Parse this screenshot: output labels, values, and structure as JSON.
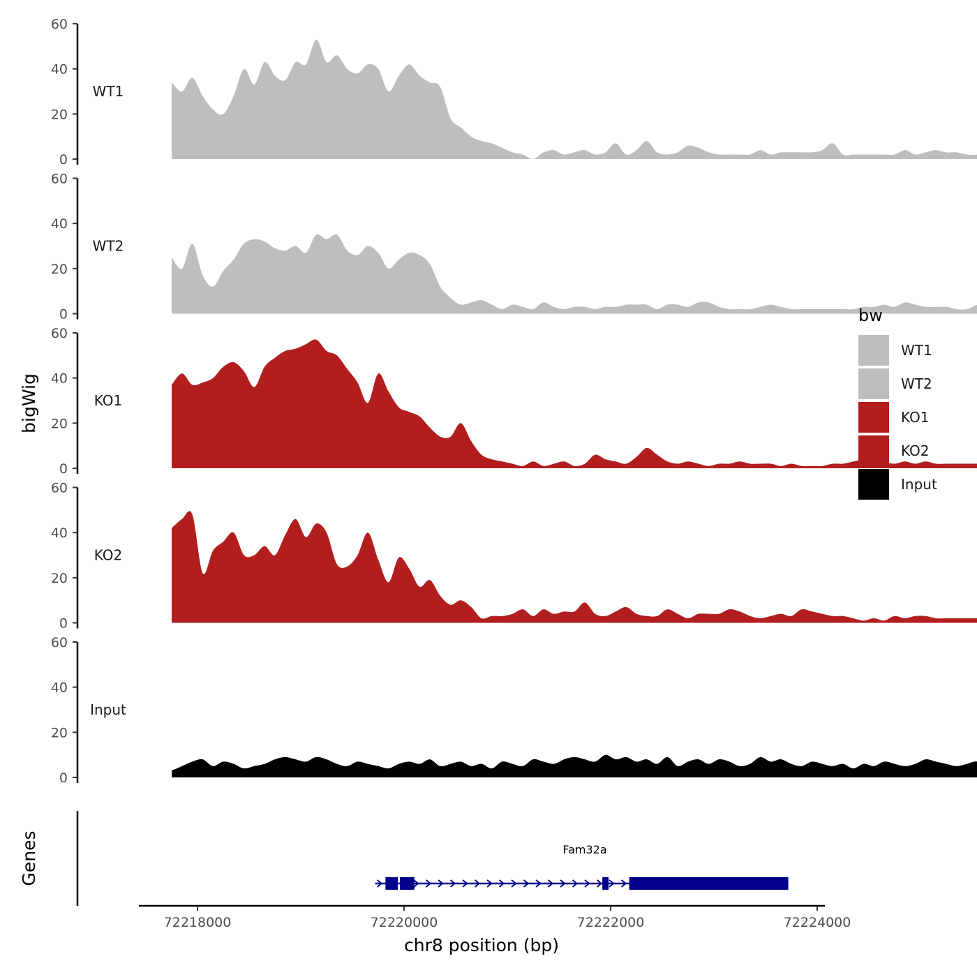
{
  "chart_data": {
    "type": "area",
    "title": "",
    "xlabel": "chr8 position (bp)",
    "ylabel": "bigWig",
    "genes_label": "Genes",
    "xlim": [
      72217400,
      72224000
    ],
    "data_range": [
      72217750,
      72223720
    ],
    "x_ticks": [
      72218000,
      72220000,
      72222000,
      72224000
    ],
    "x_tick_labels": [
      "72218000",
      "72220000",
      "72222000",
      "72224000"
    ],
    "ylim": [
      0,
      60
    ],
    "y_ticks": [
      0,
      20,
      40,
      60
    ],
    "y_tick_labels": [
      "0",
      "20",
      "40",
      "60"
    ],
    "legend": {
      "title": "bw",
      "position": "right",
      "entries": [
        {
          "label": "WT1",
          "color": "#bebebe"
        },
        {
          "label": "WT2",
          "color": "#bebebe"
        },
        {
          "label": "KO1",
          "color": "#b21e1e"
        },
        {
          "label": "KO2",
          "color": "#b21e1e"
        },
        {
          "label": "Input",
          "color": "#000000"
        }
      ]
    },
    "series": [
      {
        "name": "WT1",
        "color": "#bebebe",
        "x_start": 72217750,
        "x_step": 100,
        "values": [
          34,
          30,
          36,
          28,
          22,
          20,
          28,
          40,
          33,
          43,
          37,
          35,
          43,
          42,
          53,
          43,
          46,
          40,
          38,
          42,
          40,
          30,
          37,
          42,
          37,
          34,
          32,
          18,
          14,
          10,
          8,
          7,
          5,
          3,
          2,
          0,
          3,
          4,
          2,
          3,
          4,
          2,
          3,
          7,
          2,
          4,
          8,
          3,
          2,
          3,
          6,
          5,
          3,
          2,
          2,
          2,
          2,
          4,
          2,
          3,
          3,
          3,
          3,
          4,
          7,
          2,
          2,
          2,
          2,
          2,
          2,
          4,
          2,
          3,
          4,
          3,
          3,
          2,
          2,
          3
        ]
      },
      {
        "name": "WT2",
        "color": "#bebebe",
        "x_start": 72217750,
        "x_step": 100,
        "values": [
          25,
          20,
          31,
          17,
          12,
          19,
          24,
          31,
          33,
          32,
          29,
          28,
          30,
          27,
          35,
          33,
          35,
          28,
          26,
          30,
          27,
          20,
          24,
          27,
          26,
          22,
          12,
          7,
          4,
          5,
          6,
          4,
          2,
          4,
          3,
          2,
          5,
          3,
          2,
          3,
          3,
          2,
          3,
          3,
          4,
          4,
          4,
          2,
          4,
          4,
          3,
          5,
          5,
          3,
          2,
          2,
          2,
          3,
          4,
          3,
          2,
          2,
          2,
          2,
          2,
          2,
          2,
          3,
          3,
          4,
          3,
          5,
          4,
          3,
          3,
          3,
          2,
          2,
          4,
          5
        ]
      },
      {
        "name": "KO1",
        "color": "#b21e1e",
        "x_start": 72217750,
        "x_step": 100,
        "values": [
          37,
          42,
          37,
          38,
          40,
          45,
          47,
          43,
          36,
          45,
          49,
          52,
          53,
          55,
          57,
          52,
          50,
          44,
          38,
          29,
          42,
          34,
          27,
          25,
          23,
          18,
          14,
          14,
          20,
          12,
          6,
          4,
          3,
          2,
          1,
          3,
          1,
          2,
          3,
          1,
          2,
          6,
          4,
          3,
          2,
          5,
          9,
          6,
          3,
          2,
          3,
          2,
          1,
          2,
          2,
          3,
          2,
          2,
          2,
          1,
          2,
          1,
          1,
          1,
          2,
          2,
          3,
          4,
          5,
          3,
          2,
          3,
          2,
          3,
          2,
          2,
          2,
          2,
          2,
          2
        ]
      },
      {
        "name": "KO2",
        "color": "#b21e1e",
        "x_start": 72217750,
        "x_step": 100,
        "values": [
          42,
          46,
          48,
          22,
          32,
          36,
          40,
          30,
          30,
          34,
          30,
          39,
          46,
          38,
          44,
          40,
          26,
          25,
          30,
          40,
          28,
          18,
          29,
          24,
          16,
          19,
          12,
          8,
          10,
          7,
          2,
          3,
          3,
          4,
          6,
          3,
          6,
          4,
          5,
          5,
          9,
          4,
          3,
          5,
          7,
          4,
          3,
          3,
          6,
          4,
          2,
          4,
          4,
          4,
          6,
          5,
          3,
          2,
          3,
          4,
          3,
          6,
          5,
          4,
          3,
          3,
          2,
          1,
          2,
          1,
          3,
          2,
          3,
          3,
          2,
          2,
          2,
          2,
          2,
          2
        ]
      },
      {
        "name": "Input",
        "color": "#000000",
        "x_start": 72217750,
        "x_step": 100,
        "values": [
          3,
          5,
          7,
          8,
          5,
          7,
          6,
          4,
          5,
          6,
          8,
          9,
          8,
          7,
          9,
          8,
          6,
          5,
          7,
          6,
          5,
          4,
          6,
          7,
          6,
          8,
          5,
          6,
          7,
          5,
          6,
          4,
          7,
          6,
          5,
          8,
          7,
          6,
          8,
          9,
          8,
          7,
          10,
          8,
          9,
          7,
          8,
          6,
          9,
          5,
          7,
          8,
          6,
          8,
          7,
          5,
          6,
          9,
          7,
          8,
          6,
          5,
          7,
          6,
          5,
          6,
          4,
          6,
          5,
          7,
          6,
          5,
          6,
          8,
          7,
          6,
          5,
          6,
          7,
          4
        ]
      }
    ],
    "gene": {
      "name": "Fam32a",
      "strand": "+",
      "color": "#00008b",
      "start": 72219720,
      "end": 72223720,
      "exons": [
        [
          72219820,
          72219940
        ],
        [
          72219960,
          72220100
        ],
        [
          72221920,
          72221980
        ],
        [
          72222180,
          72223720
        ]
      ]
    }
  }
}
